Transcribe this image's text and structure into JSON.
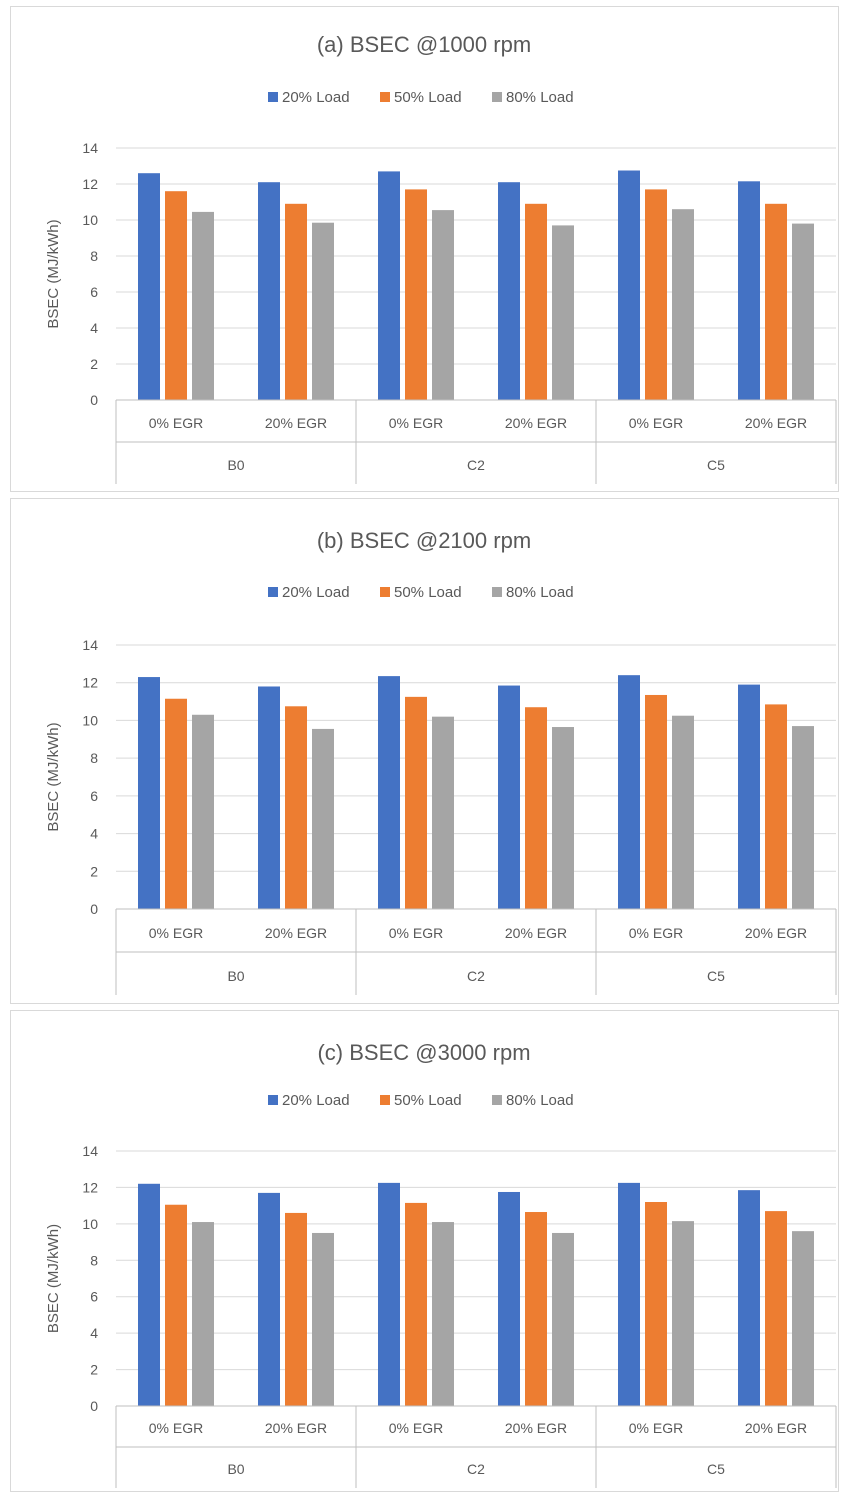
{
  "colors": {
    "series": [
      "#4472C4",
      "#ED7D31",
      "#A5A5A5"
    ],
    "grid": "#D9D9D9",
    "axis": "#BFBFBF",
    "text": "#595959",
    "border": "#D9D9D9"
  },
  "chart_data": [
    {
      "type": "bar",
      "title": "(a) BSEC @1000 rpm",
      "ylabel": "BSEC (MJ/kWh)",
      "ylim": [
        0,
        14
      ],
      "yticks": [
        0,
        2,
        4,
        6,
        8,
        10,
        12,
        14
      ],
      "grid": true,
      "legend": "top",
      "groups": [
        "B0",
        "C2",
        "C5"
      ],
      "categories": [
        "0% EGR",
        "20% EGR",
        "0% EGR",
        "20% EGR",
        "0% EGR",
        "20% EGR"
      ],
      "series": [
        {
          "name": "20% Load",
          "values": [
            12.6,
            12.1,
            12.7,
            12.1,
            12.75,
            12.15
          ]
        },
        {
          "name": "50% Load",
          "values": [
            11.6,
            10.9,
            11.7,
            10.9,
            11.7,
            10.9
          ]
        },
        {
          "name": "80% Load",
          "values": [
            10.45,
            9.85,
            10.55,
            9.7,
            10.6,
            9.8
          ]
        }
      ]
    },
    {
      "type": "bar",
      "title": "(b) BSEC @2100 rpm",
      "ylabel": "BSEC (MJ/kWh)",
      "ylim": [
        0,
        14
      ],
      "yticks": [
        0,
        2,
        4,
        6,
        8,
        10,
        12,
        14
      ],
      "grid": true,
      "legend": "top",
      "groups": [
        "B0",
        "C2",
        "C5"
      ],
      "categories": [
        "0% EGR",
        "20% EGR",
        "0% EGR",
        "20% EGR",
        "0% EGR",
        "20% EGR"
      ],
      "series": [
        {
          "name": "20% Load",
          "values": [
            12.3,
            11.8,
            12.35,
            11.85,
            12.4,
            11.9
          ]
        },
        {
          "name": "50% Load",
          "values": [
            11.15,
            10.75,
            11.25,
            10.7,
            11.35,
            10.85
          ]
        },
        {
          "name": "80% Load",
          "values": [
            10.3,
            9.55,
            10.2,
            9.65,
            10.25,
            9.7
          ]
        }
      ]
    },
    {
      "type": "bar",
      "title": "(c) BSEC @3000 rpm",
      "ylabel": "BSEC (MJ/kWh)",
      "ylim": [
        0,
        14
      ],
      "yticks": [
        0,
        2,
        4,
        6,
        8,
        10,
        12,
        14
      ],
      "grid": true,
      "legend": "top",
      "groups": [
        "B0",
        "C2",
        "C5"
      ],
      "categories": [
        "0% EGR",
        "20% EGR",
        "0% EGR",
        "20% EGR",
        "0% EGR",
        "20% EGR"
      ],
      "series": [
        {
          "name": "20% Load",
          "values": [
            12.2,
            11.7,
            12.25,
            11.75,
            12.25,
            11.85
          ]
        },
        {
          "name": "50% Load",
          "values": [
            11.05,
            10.6,
            11.15,
            10.65,
            11.2,
            10.7
          ]
        },
        {
          "name": "80% Load",
          "values": [
            10.1,
            9.5,
            10.1,
            9.5,
            10.15,
            9.6
          ]
        }
      ]
    }
  ]
}
